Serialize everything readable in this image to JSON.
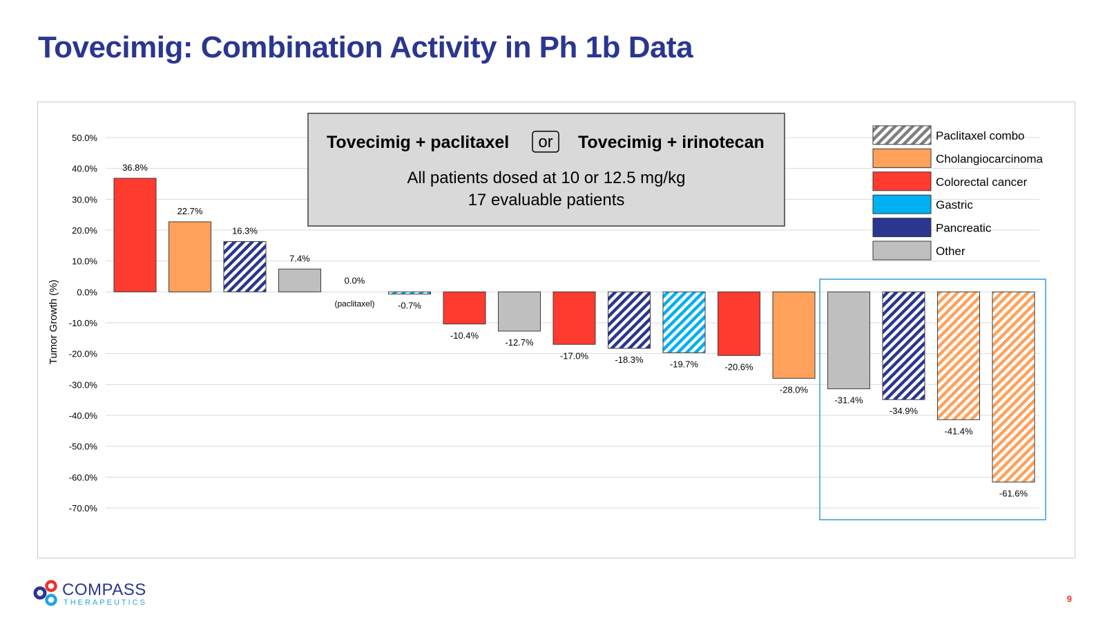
{
  "slide": {
    "title": "Tovecimig: Combination Activity in Ph 1b Data",
    "page_number": "9"
  },
  "logo": {
    "name": "COMPASS",
    "tagline": "THERAPEUTICS"
  },
  "info_box": {
    "left_label": "Tovecimig + paclitaxel",
    "or_label": "or",
    "right_label": "Tovecimig + irinotecan",
    "line1": "All patients dosed at 10 or 12.5  mg/kg",
    "line2": "17 evaluable patients"
  },
  "colors": {
    "Colorectal cancer": "#ff3b2f",
    "Cholangiocarcinoma": "#ffa15a",
    "Gastric": "#00b0f0",
    "Pancreatic": "#2a3690",
    "Other": "#bfbfbf",
    "Paclitaxel combo": "#7f7f7f",
    "title": "#2a3690",
    "highlight_box": "#2e9bd6"
  },
  "chart_data": {
    "type": "bar",
    "ylabel": "Tumor Growth (%)",
    "ylim": [
      -70,
      50
    ],
    "yticks": [
      "50.0%",
      "40.0%",
      "30.0%",
      "20.0%",
      "10.0%",
      "0.0%",
      "-10.0%",
      "-20.0%",
      "-30.0%",
      "-40.0%",
      "-50.0%",
      "-60.0%",
      "-70.0%"
    ],
    "ytick_values": [
      50,
      40,
      30,
      20,
      10,
      0,
      -10,
      -20,
      -30,
      -40,
      -50,
      -60,
      -70
    ],
    "grid": true,
    "legend_position": "top-right",
    "legend": [
      "Paclitaxel combo",
      "Cholangiocarcinoma",
      "Colorectal cancer",
      "Gastric",
      "Pancreatic",
      "Other"
    ],
    "annotation": "(paclitaxel)",
    "bars": [
      {
        "value": 36.8,
        "label": "36.8%",
        "category": "Colorectal cancer",
        "paclitaxel": false
      },
      {
        "value": 22.7,
        "label": "22.7%",
        "category": "Cholangiocarcinoma",
        "paclitaxel": false
      },
      {
        "value": 16.3,
        "label": "16.3%",
        "category": "Pancreatic",
        "paclitaxel": true
      },
      {
        "value": 7.4,
        "label": "7.4%",
        "category": "Other",
        "paclitaxel": false
      },
      {
        "value": 0.0,
        "label": "0.0%",
        "category": "Other",
        "paclitaxel": true
      },
      {
        "value": -0.7,
        "label": "-0.7%",
        "category": "Gastric",
        "paclitaxel": true
      },
      {
        "value": -10.4,
        "label": "-10.4%",
        "category": "Colorectal cancer",
        "paclitaxel": false
      },
      {
        "value": -12.7,
        "label": "-12.7%",
        "category": "Other",
        "paclitaxel": false
      },
      {
        "value": -17.0,
        "label": "-17.0%",
        "category": "Colorectal cancer",
        "paclitaxel": false
      },
      {
        "value": -18.3,
        "label": "-18.3%",
        "category": "Pancreatic",
        "paclitaxel": true
      },
      {
        "value": -19.7,
        "label": "-19.7%",
        "category": "Gastric",
        "paclitaxel": true
      },
      {
        "value": -20.6,
        "label": "-20.6%",
        "category": "Colorectal cancer",
        "paclitaxel": false
      },
      {
        "value": -28.0,
        "label": "-28.0%",
        "category": "Cholangiocarcinoma",
        "paclitaxel": false
      },
      {
        "value": -31.4,
        "label": "-31.4%",
        "category": "Other",
        "paclitaxel": false
      },
      {
        "value": -34.9,
        "label": "-34.9%",
        "category": "Pancreatic",
        "paclitaxel": true
      },
      {
        "value": -41.4,
        "label": "-41.4%",
        "category": "Cholangiocarcinoma",
        "paclitaxel": true
      },
      {
        "value": -61.6,
        "label": "-61.6%",
        "category": "Cholangiocarcinoma",
        "paclitaxel": true
      }
    ]
  }
}
